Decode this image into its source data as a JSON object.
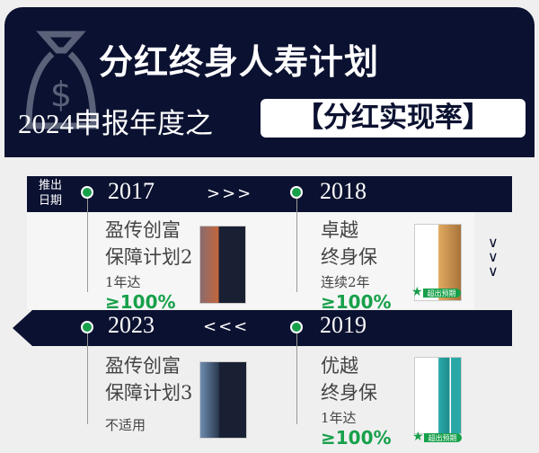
{
  "header": {
    "title": "分红终身人寿计划",
    "subtitle": "2024申报年度之",
    "highlight": "【分红实现率】",
    "icon": "money-bag-icon"
  },
  "timeline": {
    "launch_label": "推出日期",
    "forward_arrows": ">>>",
    "back_arrows": "<<<",
    "down_arrows": [
      "∨",
      "∨",
      "∨"
    ],
    "items": [
      {
        "year": "2017",
        "name_line1": "盈传创富",
        "name_line2": "保障计划2",
        "note": "1年达",
        "rate": "≥100%",
        "badge": ""
      },
      {
        "year": "2018",
        "name_line1": "卓越",
        "name_line2": "终身保",
        "note": "连续2年",
        "rate": "≥100%",
        "badge": "超出预期"
      },
      {
        "year": "2023",
        "name_line1": "盈传创富",
        "name_line2": "保障计划3",
        "note": "不适用",
        "rate": "",
        "badge": ""
      },
      {
        "year": "2019",
        "name_line1": "优越",
        "name_line2": "终身保",
        "note": "1年达",
        "rate": "≥100%",
        "badge": "超出预期"
      }
    ]
  },
  "colors": {
    "navy": "#0b1130",
    "green": "#17a04a"
  }
}
